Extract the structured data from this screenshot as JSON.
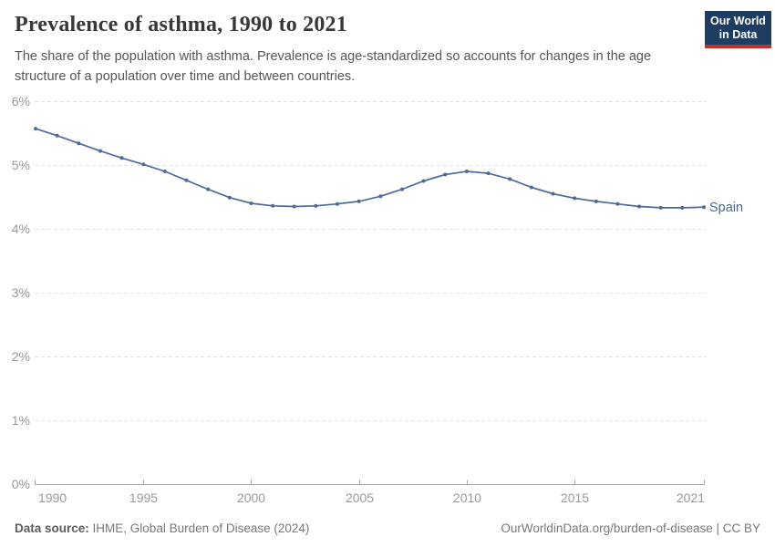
{
  "header": {
    "title": "Prevalence of asthma, 1990 to 2021",
    "subtitle": "The share of the population with asthma. Prevalence is age-standardized so accounts for changes in the age structure of a population over time and between countries.",
    "logo": {
      "line1": "Our World",
      "line2": "in Data"
    }
  },
  "chart_data": {
    "type": "line",
    "title": "Prevalence of asthma, 1990 to 2021",
    "xlabel": "",
    "ylabel": "",
    "x": [
      1990,
      1991,
      1992,
      1993,
      1994,
      1995,
      1996,
      1997,
      1998,
      1999,
      2000,
      2001,
      2002,
      2003,
      2004,
      2005,
      2006,
      2007,
      2008,
      2009,
      2010,
      2011,
      2012,
      2013,
      2014,
      2015,
      2016,
      2017,
      2018,
      2019,
      2020,
      2021
    ],
    "series": [
      {
        "name": "Spain",
        "color": "#4c6a9c",
        "values": [
          5.57,
          5.46,
          5.34,
          5.22,
          5.11,
          5.01,
          4.9,
          4.76,
          4.62,
          4.49,
          4.4,
          4.36,
          4.35,
          4.36,
          4.39,
          4.43,
          4.51,
          4.62,
          4.75,
          4.85,
          4.9,
          4.87,
          4.78,
          4.65,
          4.55,
          4.48,
          4.43,
          4.39,
          4.35,
          4.33,
          4.33,
          4.34
        ]
      }
    ],
    "ylim": [
      0,
      6
    ],
    "yticks": [
      0,
      1,
      2,
      3,
      4,
      5,
      6
    ],
    "ytick_suffix": "%",
    "xticks": [
      1990,
      1995,
      2000,
      2005,
      2010,
      2015,
      2021
    ],
    "grid": "horizontal-dashed",
    "legend_position": "end-of-line"
  },
  "footer": {
    "source_label": "Data source:",
    "source_value": "IHME, Global Burden of Disease (2024)",
    "attribution": "OurWorldinData.org/burden-of-disease | CC BY"
  },
  "colors": {
    "line": "#4c6a9c",
    "grid": "#e2e2e2",
    "axis": "#a6a6a6",
    "tick_text": "#999999",
    "logo_bg": "#1d3d63",
    "logo_accent": "#cb2d24"
  }
}
